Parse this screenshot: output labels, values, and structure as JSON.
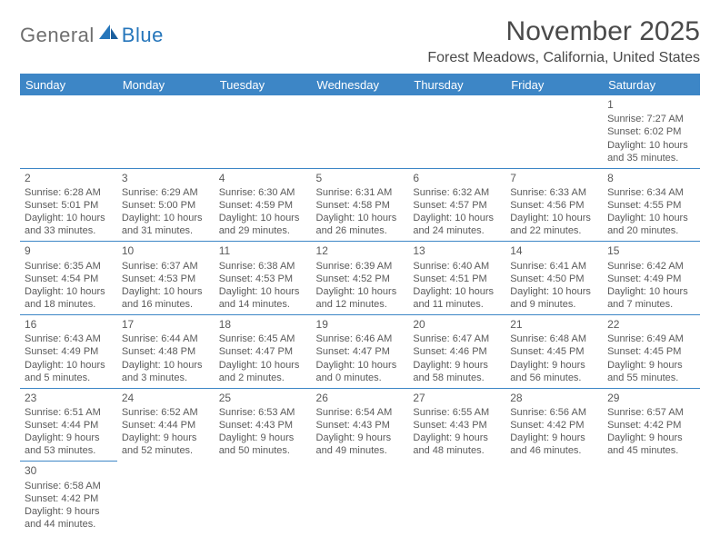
{
  "logo": {
    "general": "General",
    "blue": "Blue"
  },
  "title": "November 2025",
  "location": "Forest Meadows, California, United States",
  "colors": {
    "header_bg": "#3d86c6",
    "header_text": "#ffffff",
    "rule": "#3d86c6",
    "logo_gray": "#6f6f6f",
    "logo_blue": "#2676bb",
    "body_text": "#5a5a5a"
  },
  "weekdays": [
    "Sunday",
    "Monday",
    "Tuesday",
    "Wednesday",
    "Thursday",
    "Friday",
    "Saturday"
  ],
  "weeks": [
    [
      null,
      null,
      null,
      null,
      null,
      null,
      {
        "n": "1",
        "sr": "Sunrise: 7:27 AM",
        "ss": "Sunset: 6:02 PM",
        "dl": "Daylight: 10 hours and 35 minutes."
      }
    ],
    [
      {
        "n": "2",
        "sr": "Sunrise: 6:28 AM",
        "ss": "Sunset: 5:01 PM",
        "dl": "Daylight: 10 hours and 33 minutes."
      },
      {
        "n": "3",
        "sr": "Sunrise: 6:29 AM",
        "ss": "Sunset: 5:00 PM",
        "dl": "Daylight: 10 hours and 31 minutes."
      },
      {
        "n": "4",
        "sr": "Sunrise: 6:30 AM",
        "ss": "Sunset: 4:59 PM",
        "dl": "Daylight: 10 hours and 29 minutes."
      },
      {
        "n": "5",
        "sr": "Sunrise: 6:31 AM",
        "ss": "Sunset: 4:58 PM",
        "dl": "Daylight: 10 hours and 26 minutes."
      },
      {
        "n": "6",
        "sr": "Sunrise: 6:32 AM",
        "ss": "Sunset: 4:57 PM",
        "dl": "Daylight: 10 hours and 24 minutes."
      },
      {
        "n": "7",
        "sr": "Sunrise: 6:33 AM",
        "ss": "Sunset: 4:56 PM",
        "dl": "Daylight: 10 hours and 22 minutes."
      },
      {
        "n": "8",
        "sr": "Sunrise: 6:34 AM",
        "ss": "Sunset: 4:55 PM",
        "dl": "Daylight: 10 hours and 20 minutes."
      }
    ],
    [
      {
        "n": "9",
        "sr": "Sunrise: 6:35 AM",
        "ss": "Sunset: 4:54 PM",
        "dl": "Daylight: 10 hours and 18 minutes."
      },
      {
        "n": "10",
        "sr": "Sunrise: 6:37 AM",
        "ss": "Sunset: 4:53 PM",
        "dl": "Daylight: 10 hours and 16 minutes."
      },
      {
        "n": "11",
        "sr": "Sunrise: 6:38 AM",
        "ss": "Sunset: 4:53 PM",
        "dl": "Daylight: 10 hours and 14 minutes."
      },
      {
        "n": "12",
        "sr": "Sunrise: 6:39 AM",
        "ss": "Sunset: 4:52 PM",
        "dl": "Daylight: 10 hours and 12 minutes."
      },
      {
        "n": "13",
        "sr": "Sunrise: 6:40 AM",
        "ss": "Sunset: 4:51 PM",
        "dl": "Daylight: 10 hours and 11 minutes."
      },
      {
        "n": "14",
        "sr": "Sunrise: 6:41 AM",
        "ss": "Sunset: 4:50 PM",
        "dl": "Daylight: 10 hours and 9 minutes."
      },
      {
        "n": "15",
        "sr": "Sunrise: 6:42 AM",
        "ss": "Sunset: 4:49 PM",
        "dl": "Daylight: 10 hours and 7 minutes."
      }
    ],
    [
      {
        "n": "16",
        "sr": "Sunrise: 6:43 AM",
        "ss": "Sunset: 4:49 PM",
        "dl": "Daylight: 10 hours and 5 minutes."
      },
      {
        "n": "17",
        "sr": "Sunrise: 6:44 AM",
        "ss": "Sunset: 4:48 PM",
        "dl": "Daylight: 10 hours and 3 minutes."
      },
      {
        "n": "18",
        "sr": "Sunrise: 6:45 AM",
        "ss": "Sunset: 4:47 PM",
        "dl": "Daylight: 10 hours and 2 minutes."
      },
      {
        "n": "19",
        "sr": "Sunrise: 6:46 AM",
        "ss": "Sunset: 4:47 PM",
        "dl": "Daylight: 10 hours and 0 minutes."
      },
      {
        "n": "20",
        "sr": "Sunrise: 6:47 AM",
        "ss": "Sunset: 4:46 PM",
        "dl": "Daylight: 9 hours and 58 minutes."
      },
      {
        "n": "21",
        "sr": "Sunrise: 6:48 AM",
        "ss": "Sunset: 4:45 PM",
        "dl": "Daylight: 9 hours and 56 minutes."
      },
      {
        "n": "22",
        "sr": "Sunrise: 6:49 AM",
        "ss": "Sunset: 4:45 PM",
        "dl": "Daylight: 9 hours and 55 minutes."
      }
    ],
    [
      {
        "n": "23",
        "sr": "Sunrise: 6:51 AM",
        "ss": "Sunset: 4:44 PM",
        "dl": "Daylight: 9 hours and 53 minutes."
      },
      {
        "n": "24",
        "sr": "Sunrise: 6:52 AM",
        "ss": "Sunset: 4:44 PM",
        "dl": "Daylight: 9 hours and 52 minutes."
      },
      {
        "n": "25",
        "sr": "Sunrise: 6:53 AM",
        "ss": "Sunset: 4:43 PM",
        "dl": "Daylight: 9 hours and 50 minutes."
      },
      {
        "n": "26",
        "sr": "Sunrise: 6:54 AM",
        "ss": "Sunset: 4:43 PM",
        "dl": "Daylight: 9 hours and 49 minutes."
      },
      {
        "n": "27",
        "sr": "Sunrise: 6:55 AM",
        "ss": "Sunset: 4:43 PM",
        "dl": "Daylight: 9 hours and 48 minutes."
      },
      {
        "n": "28",
        "sr": "Sunrise: 6:56 AM",
        "ss": "Sunset: 4:42 PM",
        "dl": "Daylight: 9 hours and 46 minutes."
      },
      {
        "n": "29",
        "sr": "Sunrise: 6:57 AM",
        "ss": "Sunset: 4:42 PM",
        "dl": "Daylight: 9 hours and 45 minutes."
      }
    ],
    [
      {
        "n": "30",
        "sr": "Sunrise: 6:58 AM",
        "ss": "Sunset: 4:42 PM",
        "dl": "Daylight: 9 hours and 44 minutes."
      },
      null,
      null,
      null,
      null,
      null,
      null
    ]
  ]
}
